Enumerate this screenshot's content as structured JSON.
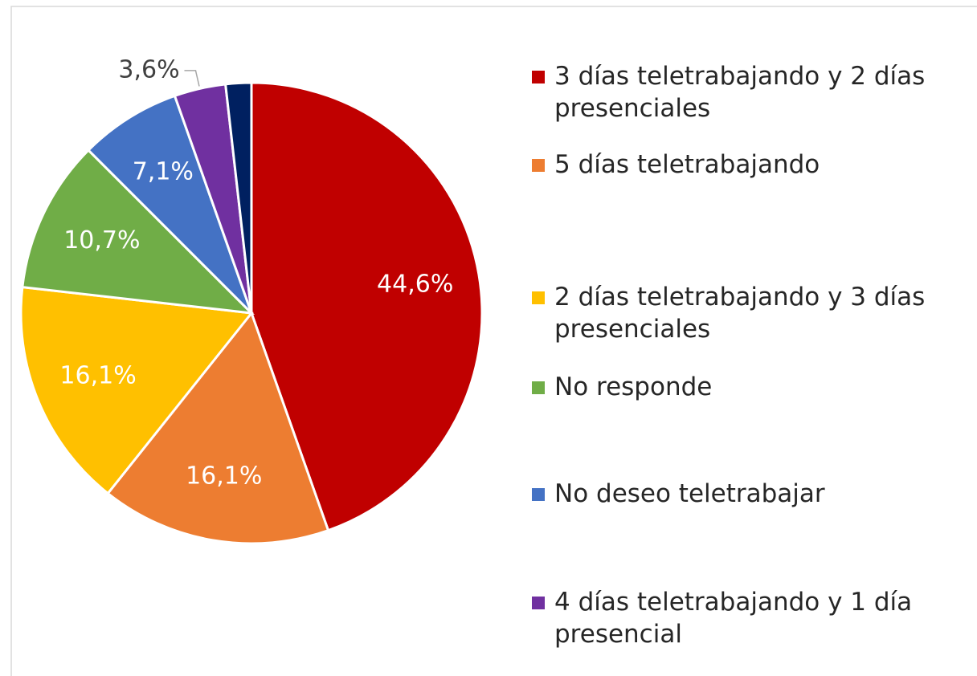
{
  "chart_data": {
    "type": "pie",
    "categories": [
      "3 días teletrabajando y 2 días presenciales",
      "5 días teletrabajando",
      "2 días teletrabajando y 3 días presenciales",
      "No responde",
      "No deseo teletrabajar",
      "4 días teletrabajando y 1 día presencial",
      null
    ],
    "values": [
      44.6,
      16.1,
      16.1,
      10.7,
      7.1,
      3.6,
      1.8
    ],
    "value_labels": [
      "44,6%",
      "16,1%",
      "16,1%",
      "10,7%",
      "7,1%",
      "3,6%",
      null
    ],
    "colors": [
      "#c00000",
      "#ed7d31",
      "#ffc000",
      "#70ad47",
      "#4472c4",
      "#7030a0",
      "#002060"
    ],
    "legend": "right"
  }
}
